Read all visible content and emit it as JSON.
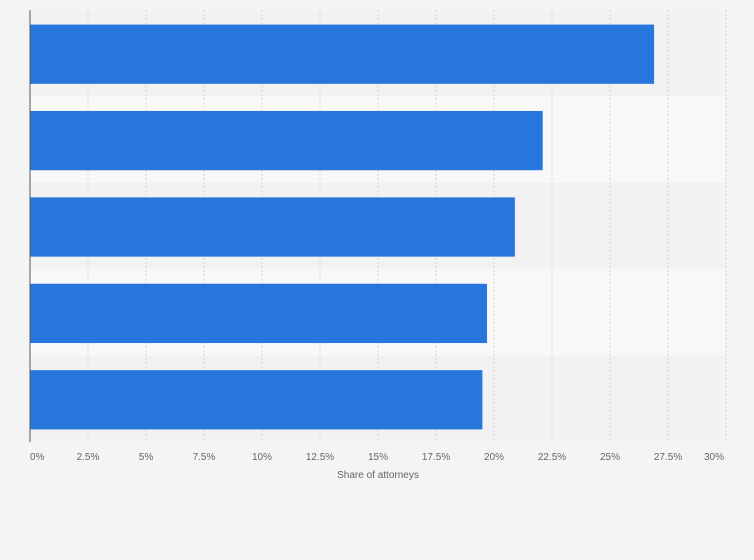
{
  "chart_data": {
    "type": "bar",
    "orientation": "horizontal",
    "categories": [
      "",
      "",
      "",
      "",
      ""
    ],
    "values": [
      26.9,
      22.1,
      20.9,
      19.7,
      19.5
    ],
    "xlabel": "Share of attorneys",
    "xlim": [
      0,
      30
    ],
    "xticks": [
      0,
      2.5,
      5,
      7.5,
      10,
      12.5,
      15,
      17.5,
      20,
      22.5,
      25,
      27.5,
      30
    ],
    "xtick_labels": [
      "0%",
      "2.5%",
      "5%",
      "7.5%",
      "10%",
      "12.5%",
      "15%",
      "17.5%",
      "20%",
      "22.5%",
      "25%",
      "27.5%",
      "30%"
    ],
    "grid": true,
    "legend": "none",
    "colors": {
      "bar": "#2776dc",
      "band_dark": "#f2f2f2",
      "band_light": "#f8f8f8",
      "page": "#f4f4f4",
      "grid": "#d6d6d6",
      "axis": "#555555"
    }
  }
}
